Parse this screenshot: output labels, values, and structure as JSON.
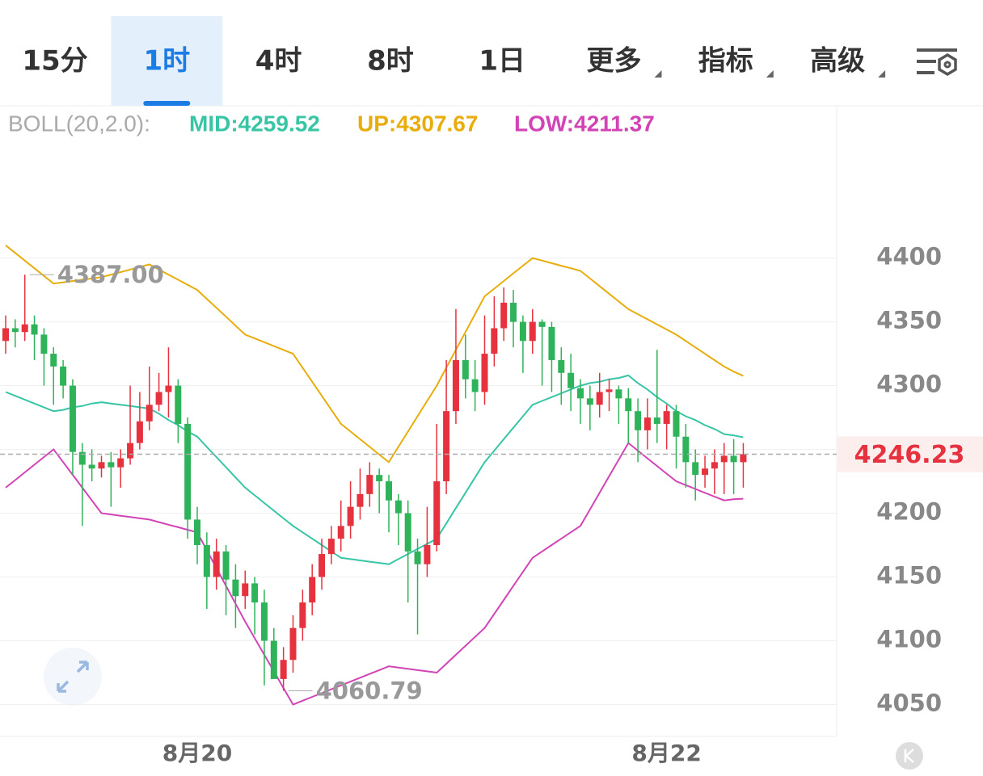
{
  "toolbar": {
    "tabs": [
      "15分",
      "1时",
      "4时",
      "8时",
      "1日",
      "更多",
      "指标",
      "高级"
    ],
    "active": 1,
    "dropdowns": [
      5,
      6,
      7
    ]
  },
  "chart_data": {
    "type": "candlestick",
    "legend": [
      "BOLL(20,2.0):"
    ],
    "categories": [
      null,
      null,
      null,
      null,
      null,
      null,
      null,
      null,
      null,
      null,
      null,
      null,
      null,
      null,
      null,
      null,
      null,
      null,
      null,
      null,
      "8月20",
      null,
      null,
      null,
      null,
      null,
      null,
      null,
      null,
      null,
      null,
      null,
      null,
      null,
      null,
      null,
      null,
      null,
      null,
      null,
      null,
      null,
      null,
      null,
      null,
      null,
      null,
      null,
      null,
      null,
      null,
      null,
      null,
      null,
      null,
      null,
      null,
      null,
      null,
      null,
      null,
      null,
      null,
      null,
      null,
      null,
      null,
      null,
      null,
      "8月22",
      null,
      null,
      null,
      null,
      null,
      null,
      null,
      null
    ],
    "candles": {
      "open": [
        4335,
        4345,
        4342,
        4348,
        4340,
        4325,
        4315,
        4300,
        4248,
        4238,
        4235,
        4240,
        4236,
        4243,
        4255,
        4272,
        4285,
        4295,
        4300,
        4270,
        4195,
        4175,
        4150,
        4170,
        4148,
        4135,
        4145,
        4130,
        4100,
        4070,
        4085,
        4110,
        4130,
        4150,
        4168,
        4180,
        4190,
        4205,
        4215,
        4230,
        4225,
        4210,
        4200,
        4170,
        4160,
        4175,
        4225,
        4280,
        4320,
        4305,
        4295,
        4325,
        4345,
        4365,
        4350,
        4335,
        4350,
        4346,
        4320,
        4310,
        4298,
        4290,
        4285,
        4295,
        4297,
        4290,
        4280,
        4265,
        4275,
        4270,
        4280,
        4260,
        4240,
        4230,
        4235,
        4240,
        4245,
        4240
      ],
      "high": [
        4355,
        4352,
        4387,
        4355,
        4345,
        4330,
        4320,
        4305,
        4255,
        4250,
        4245,
        4248,
        4250,
        4300,
        4295,
        4315,
        4310,
        4330,
        4305,
        4275,
        4205,
        4185,
        4180,
        4175,
        4160,
        4155,
        4150,
        4140,
        4110,
        4095,
        4120,
        4140,
        4160,
        4180,
        4190,
        4210,
        4225,
        4235,
        4240,
        4235,
        4230,
        4215,
        4210,
        4180,
        4205,
        4270,
        4320,
        4360,
        4340,
        4320,
        4355,
        4370,
        4377,
        4375,
        4355,
        4360,
        4352,
        4350,
        4330,
        4325,
        4305,
        4300,
        4310,
        4305,
        4300,
        4298,
        4290,
        4290,
        4328,
        4285,
        4285,
        4270,
        4250,
        4245,
        4250,
        4255,
        4258,
        4255
      ],
      "low": [
        4325,
        4330,
        4335,
        4320,
        4300,
        4285,
        4290,
        4230,
        4190,
        4225,
        4228,
        4205,
        4220,
        4238,
        4250,
        4265,
        4280,
        4275,
        4255,
        4180,
        4160,
        4125,
        4140,
        4120,
        4110,
        4125,
        4105,
        4065,
        4075,
        4060.79,
        4075,
        4100,
        4120,
        4140,
        4160,
        4170,
        4180,
        4195,
        4205,
        4200,
        4185,
        4175,
        4130,
        4105,
        4150,
        4170,
        4215,
        4270,
        4290,
        4280,
        4285,
        4315,
        4335,
        4330,
        4310,
        4325,
        4300,
        4295,
        4285,
        4280,
        4270,
        4265,
        4275,
        4280,
        4270,
        4255,
        4240,
        4250,
        4255,
        4250,
        4235,
        4220,
        4210,
        4220,
        4215,
        4215,
        4215,
        4220
      ],
      "close": [
        4345,
        4342,
        4348,
        4340,
        4325,
        4315,
        4300,
        4248,
        4238,
        4235,
        4240,
        4236,
        4243,
        4255,
        4272,
        4285,
        4295,
        4300,
        4270,
        4195,
        4175,
        4150,
        4170,
        4148,
        4135,
        4145,
        4130,
        4100,
        4070,
        4085,
        4110,
        4130,
        4150,
        4168,
        4180,
        4190,
        4205,
        4215,
        4230,
        4225,
        4210,
        4200,
        4170,
        4160,
        4175,
        4225,
        4280,
        4320,
        4305,
        4295,
        4325,
        4345,
        4365,
        4350,
        4335,
        4350,
        4346,
        4320,
        4310,
        4298,
        4290,
        4285,
        4295,
        4297,
        4290,
        4280,
        4265,
        4275,
        4270,
        4280,
        4260,
        4240,
        4230,
        4235,
        4240,
        4245,
        4240,
        4246.23
      ]
    },
    "up_color": "#e5323e",
    "down_color": "#2fb35a",
    "series": [
      {
        "label": "MID:4259.52",
        "color": "#38c5a5",
        "values": [
          4295,
          4292,
          4289,
          4286,
          4283,
          4280,
          4281,
          4283,
          4284,
          4286,
          4287,
          4286,
          4285,
          4284,
          4283,
          4282,
          4278,
          4273,
          4269,
          4264,
          4260,
          4252,
          4244,
          4236,
          4228,
          4220,
          4214,
          4208,
          4202,
          4196,
          4190,
          4185,
          4180,
          4175,
          4170,
          4165,
          4164,
          4163,
          4162,
          4161,
          4160,
          4164,
          4168,
          4172,
          4176,
          4180,
          4192,
          4204,
          4216,
          4228,
          4240,
          4249,
          4258,
          4267,
          4276,
          4285,
          4288,
          4291,
          4294,
          4297,
          4300,
          4302,
          4303,
          4305,
          4306,
          4308,
          4302,
          4297,
          4291,
          4286,
          4280,
          4276,
          4273,
          4269,
          4266,
          4262,
          4261,
          4259.52
        ]
      },
      {
        "label": "UP:4307.67",
        "color": "#e8ad0c",
        "values": [
          4410,
          4404,
          4398,
          4392,
          4386,
          4380,
          4381,
          4382,
          4383,
          4384,
          4385,
          4387,
          4389,
          4391,
          4393,
          4395,
          4391,
          4387,
          4383,
          4379,
          4375,
          4368,
          4361,
          4354,
          4347,
          4340,
          4337,
          4334,
          4331,
          4328,
          4325,
          4314,
          4303,
          4292,
          4281,
          4270,
          4264,
          4258,
          4252,
          4246,
          4240,
          4252,
          4264,
          4276,
          4288,
          4300,
          4314,
          4328,
          4342,
          4356,
          4370,
          4376,
          4382,
          4388,
          4394,
          4400,
          4398,
          4396,
          4394,
          4392,
          4390,
          4384,
          4378,
          4372,
          4366,
          4360,
          4356,
          4352,
          4348,
          4344,
          4340,
          4335,
          4330,
          4325,
          4320,
          4315,
          4311,
          4307.67
        ]
      },
      {
        "label": "LOW:4211.37",
        "color": "#d244b6",
        "values": [
          4220,
          4226,
          4232,
          4238,
          4244,
          4250,
          4240,
          4230,
          4220,
          4210,
          4200,
          4199,
          4198,
          4197,
          4196,
          4195,
          4193,
          4191,
          4189,
          4187,
          4185,
          4171,
          4157,
          4143,
          4129,
          4115,
          4102,
          4089,
          4076,
          4063,
          4050,
          4053,
          4056,
          4059,
          4062,
          4065,
          4068,
          4071,
          4074,
          4077,
          4080,
          4079,
          4078,
          4077,
          4076,
          4075,
          4082,
          4089,
          4096,
          4103,
          4110,
          4121,
          4132,
          4143,
          4154,
          4165,
          4170,
          4175,
          4180,
          4185,
          4190,
          4203,
          4216,
          4229,
          4242,
          4255,
          4249,
          4243,
          4237,
          4231,
          4225,
          4222,
          4219,
          4216,
          4213,
          4210,
          4211,
          4211.37
        ]
      }
    ],
    "max_label": "4387.00",
    "min_label": "4060.79",
    "last_price": 4246.23,
    "ylim": [
      4025,
      4520
    ],
    "yticks": [
      4050,
      4100,
      4150,
      4200,
      4250,
      4300,
      4350,
      4400
    ],
    "grid": true
  }
}
